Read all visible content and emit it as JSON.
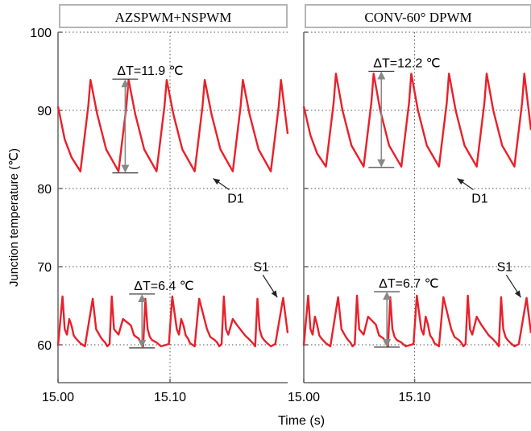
{
  "chart_data": {
    "type": "line",
    "ylabel": "Junction temperature (℃)",
    "xlabel": "Time (s)",
    "ylim": [
      55,
      100
    ],
    "yticks": [
      60,
      70,
      80,
      90,
      100
    ],
    "grid": true,
    "line_color": "#e8202a",
    "panels": [
      {
        "title": "AZSPWM+NSPWM",
        "xlim": [
          15.0,
          15.205
        ],
        "xticks": [
          15.0,
          15.1
        ],
        "xtick_labels": [
          "15.00",
          "15.10"
        ],
        "series": [
          {
            "label": "D1",
            "x": [
              15.0,
              15.006,
              15.012,
              15.02,
              15.027,
              15.029,
              15.035,
              15.043,
              15.054,
              15.061,
              15.063,
              15.069,
              15.077,
              15.088,
              15.095,
              15.097,
              15.103,
              15.111,
              15.122,
              15.129,
              15.131,
              15.137,
              15.145,
              15.156,
              15.163,
              15.165,
              15.171,
              15.179,
              15.19,
              15.197,
              15.199,
              15.205
            ],
            "y": [
              90.5,
              86.3,
              84.0,
              82.2,
              90.5,
              93.9,
              89.5,
              85.0,
              82.2,
              90.5,
              93.9,
              89.5,
              85.0,
              82.2,
              90.5,
              93.9,
              89.5,
              85.0,
              82.2,
              90.5,
              93.9,
              89.5,
              85.0,
              82.2,
              90.5,
              93.9,
              89.5,
              85.0,
              82.2,
              90.5,
              93.9,
              87.0
            ]
          },
          {
            "label": "S1",
            "x": [
              15.0,
              15.004,
              15.006,
              15.008,
              15.01,
              15.012,
              15.014,
              15.016,
              15.02,
              15.024,
              15.031,
              15.034,
              15.038,
              15.04,
              15.042,
              15.044,
              15.046,
              15.048,
              15.05,
              15.054,
              15.058,
              15.065,
              15.068,
              15.072,
              15.074,
              15.076,
              15.078,
              15.08,
              15.082,
              15.084,
              15.088,
              15.092,
              15.099,
              15.102,
              15.106,
              15.108,
              15.11,
              15.112,
              15.114,
              15.116,
              15.118,
              15.122,
              15.126,
              15.133,
              15.136,
              15.14,
              15.142,
              15.144,
              15.146,
              15.148,
              15.15,
              15.152,
              15.156,
              15.16,
              15.167,
              15.17,
              15.174,
              15.176,
              15.178,
              15.18,
              15.182,
              15.184,
              15.186,
              15.19,
              15.194,
              15.201,
              15.205
            ],
            "y": [
              59.9,
              66.2,
              62.0,
              61.3,
              63.3,
              62.5,
              61.2,
              60.8,
              60.2,
              59.8,
              65.9,
              62.0,
              61.0,
              60.6,
              60.3,
              59.8,
              60.1,
              66.2,
              62.0,
              61.3,
              63.3,
              62.5,
              61.2,
              60.8,
              60.2,
              59.8,
              65.9,
              62.0,
              61.0,
              60.6,
              60.3,
              59.8,
              60.1,
              66.2,
              62.0,
              61.3,
              63.3,
              62.5,
              61.2,
              60.8,
              60.2,
              59.8,
              65.9,
              62.0,
              61.0,
              60.6,
              60.3,
              59.8,
              60.1,
              66.2,
              62.0,
              61.3,
              63.3,
              62.5,
              61.2,
              60.8,
              60.2,
              59.8,
              65.9,
              62.0,
              61.0,
              60.6,
              60.3,
              59.8,
              60.1,
              66.0,
              61.5
            ]
          }
        ],
        "annotations": [
          {
            "text": "ΔT=11.9 ℃",
            "x": 15.06,
            "y1": 94.0,
            "y2": 82.0
          },
          {
            "text": "ΔT=6.4 ℃",
            "x": 15.075,
            "y1": 66.5,
            "y2": 59.6
          },
          {
            "text": "D1",
            "x": 15.137,
            "y": 81.5
          },
          {
            "text": "S1",
            "x": 15.19,
            "y": 67.5
          }
        ]
      },
      {
        "title": "CONV-60° DPWM",
        "xlim": [
          15.0,
          15.205
        ],
        "xticks": [
          15.0,
          15.1
        ],
        "xtick_labels": [
          "15.00",
          "15.10"
        ],
        "series": [
          {
            "label": "D1",
            "x": [
              15.0,
              15.006,
              15.012,
              15.02,
              15.027,
              15.029,
              15.035,
              15.043,
              15.054,
              15.061,
              15.063,
              15.069,
              15.077,
              15.088,
              15.095,
              15.097,
              15.103,
              15.111,
              15.122,
              15.129,
              15.131,
              15.137,
              15.145,
              15.156,
              15.163,
              15.165,
              15.171,
              15.179,
              15.19,
              15.197,
              15.199,
              15.205
            ],
            "y": [
              90.5,
              86.8,
              84.5,
              82.8,
              91.0,
              94.7,
              90.0,
              85.5,
              82.8,
              91.0,
              94.7,
              90.0,
              85.5,
              82.8,
              91.0,
              94.7,
              90.0,
              85.5,
              82.8,
              91.0,
              94.7,
              90.0,
              85.5,
              82.8,
              91.0,
              94.7,
              90.0,
              85.5,
              82.8,
              91.0,
              94.7,
              87.5
            ]
          },
          {
            "label": "S1",
            "x": [
              15.0,
              15.004,
              15.006,
              15.008,
              15.01,
              15.012,
              15.014,
              15.016,
              15.02,
              15.024,
              15.031,
              15.034,
              15.038,
              15.04,
              15.042,
              15.044,
              15.046,
              15.048,
              15.05,
              15.054,
              15.058,
              15.065,
              15.068,
              15.072,
              15.074,
              15.076,
              15.078,
              15.08,
              15.082,
              15.084,
              15.088,
              15.092,
              15.099,
              15.102,
              15.106,
              15.108,
              15.11,
              15.112,
              15.114,
              15.116,
              15.118,
              15.122,
              15.126,
              15.133,
              15.136,
              15.14,
              15.142,
              15.144,
              15.146,
              15.148,
              15.15,
              15.152,
              15.156,
              15.16,
              15.167,
              15.17,
              15.174,
              15.176,
              15.178,
              15.18,
              15.182,
              15.184,
              15.186,
              15.19,
              15.194,
              15.201,
              15.205
            ],
            "y": [
              59.9,
              66.3,
              62.0,
              61.3,
              63.6,
              62.6,
              61.2,
              60.8,
              60.2,
              59.8,
              66.1,
              62.0,
              61.0,
              60.6,
              60.3,
              59.8,
              60.1,
              66.3,
              62.0,
              61.3,
              63.6,
              62.6,
              61.2,
              60.8,
              60.2,
              59.8,
              66.1,
              62.0,
              61.0,
              60.6,
              60.3,
              59.8,
              60.1,
              66.3,
              62.0,
              61.3,
              63.6,
              62.6,
              61.2,
              60.8,
              60.2,
              59.8,
              66.1,
              62.0,
              61.0,
              60.6,
              60.3,
              59.8,
              60.1,
              66.3,
              62.0,
              61.3,
              63.6,
              62.6,
              61.2,
              60.8,
              60.2,
              59.8,
              66.1,
              62.0,
              61.0,
              60.6,
              60.3,
              59.8,
              60.1,
              66.0,
              61.5
            ]
          }
        ],
        "annotations": [
          {
            "text": "ΔT=12.2 ℃",
            "x": 15.07,
            "y1": 95.0,
            "y2": 82.7
          },
          {
            "text": "ΔT=6.7 ℃",
            "x": 15.075,
            "y1": 66.8,
            "y2": 59.7
          },
          {
            "text": "D1",
            "x": 15.137,
            "y": 81.5
          },
          {
            "text": "S1",
            "x": 15.19,
            "y": 67.5
          }
        ]
      }
    ]
  }
}
